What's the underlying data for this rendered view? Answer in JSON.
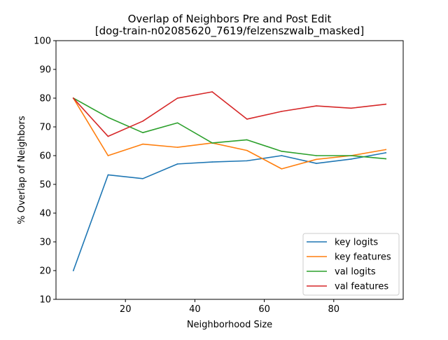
{
  "chart_data": {
    "type": "line",
    "title": "Overlap of Neighbors Pre and Post Edit",
    "subtitle": "[dog-train-n02085620_7619/felzenszwalb_masked]",
    "xlabel": "Neighborhood Size",
    "ylabel": "% Overlap of Neighbors",
    "xlim": [
      0,
      100
    ],
    "ylim": [
      10,
      100
    ],
    "xticks": [
      20,
      40,
      60,
      80
    ],
    "yticks": [
      10,
      20,
      30,
      40,
      50,
      60,
      70,
      80,
      90,
      100
    ],
    "grid": false,
    "legend_position": "lower-right",
    "x": [
      5,
      15,
      25,
      35,
      45,
      55,
      65,
      75,
      85,
      95
    ],
    "series": [
      {
        "name": "key logits",
        "color": "#1f77b4",
        "values": [
          20,
          53.3,
          52,
          57.1,
          57.8,
          58.2,
          60,
          57.3,
          58.8,
          61
        ]
      },
      {
        "name": "key features",
        "color": "#ff7f0e",
        "values": [
          80,
          60,
          64,
          62.9,
          64.4,
          61.8,
          55.4,
          58.7,
          60,
          62.1
        ]
      },
      {
        "name": "val logits",
        "color": "#2ca02c",
        "values": [
          80,
          73.3,
          68,
          71.4,
          64.4,
          65.5,
          61.5,
          60,
          60,
          58.9
        ]
      },
      {
        "name": "val features",
        "color": "#d62728",
        "values": [
          80,
          66.7,
          72,
          80,
          82.2,
          72.7,
          75.4,
          77.3,
          76.5,
          77.9
        ]
      }
    ]
  }
}
